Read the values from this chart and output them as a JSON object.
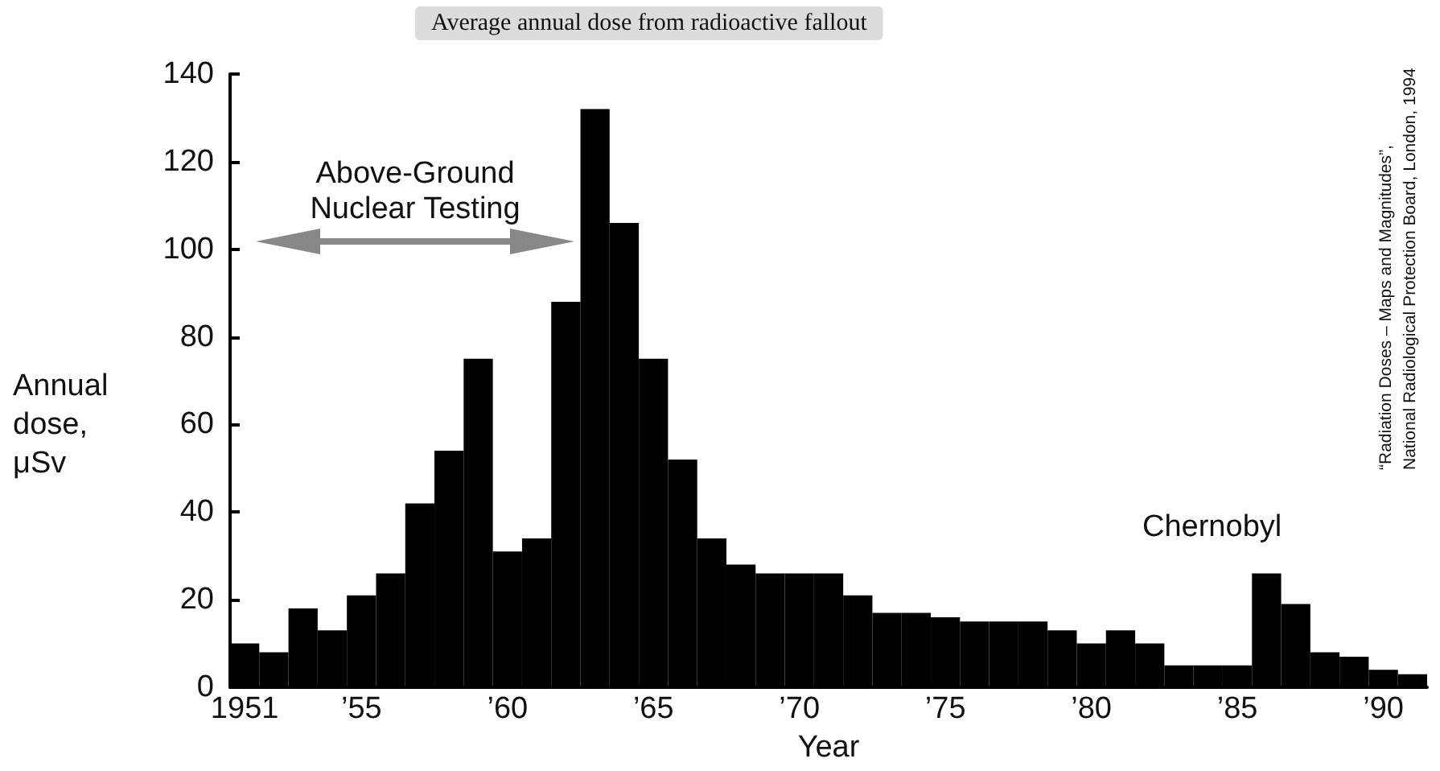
{
  "chart_data": {
    "type": "bar",
    "title": "Average annual dose from radioactive fallout",
    "xlabel": "Year",
    "ylabel": "Annual\ndose,\nμSv",
    "categories": [
      "1951",
      null,
      null,
      null,
      "’55",
      null,
      null,
      null,
      null,
      "’60",
      null,
      null,
      null,
      null,
      "’65",
      null,
      null,
      null,
      null,
      "’70",
      null,
      null,
      null,
      null,
      "’75",
      null,
      null,
      null,
      null,
      "’80",
      null,
      null,
      null,
      null,
      "’85",
      null,
      null,
      null,
      null,
      "’90",
      null
    ],
    "series": [
      {
        "color": "#000000",
        "values": [
          10,
          8,
          18,
          13,
          21,
          26,
          42,
          54,
          75,
          31,
          34,
          88,
          132,
          106,
          75,
          52,
          34,
          28,
          26,
          26,
          26,
          21,
          17,
          17,
          16,
          15,
          15,
          15,
          13,
          10,
          13,
          10,
          5,
          5,
          5,
          26,
          19,
          8,
          7,
          4,
          3
        ]
      }
    ],
    "ylim": [
      0,
      140
    ],
    "yticks": [
      0,
      20,
      40,
      60,
      80,
      100,
      120,
      140
    ],
    "grid": false,
    "annotations": [
      "Above-Ground\nNuclear Testing",
      "Chernobyl",
      "“Radiation Doses – Maps and Magnitudes”,\nNational Radiological Protection Board, London, 1994"
    ]
  }
}
